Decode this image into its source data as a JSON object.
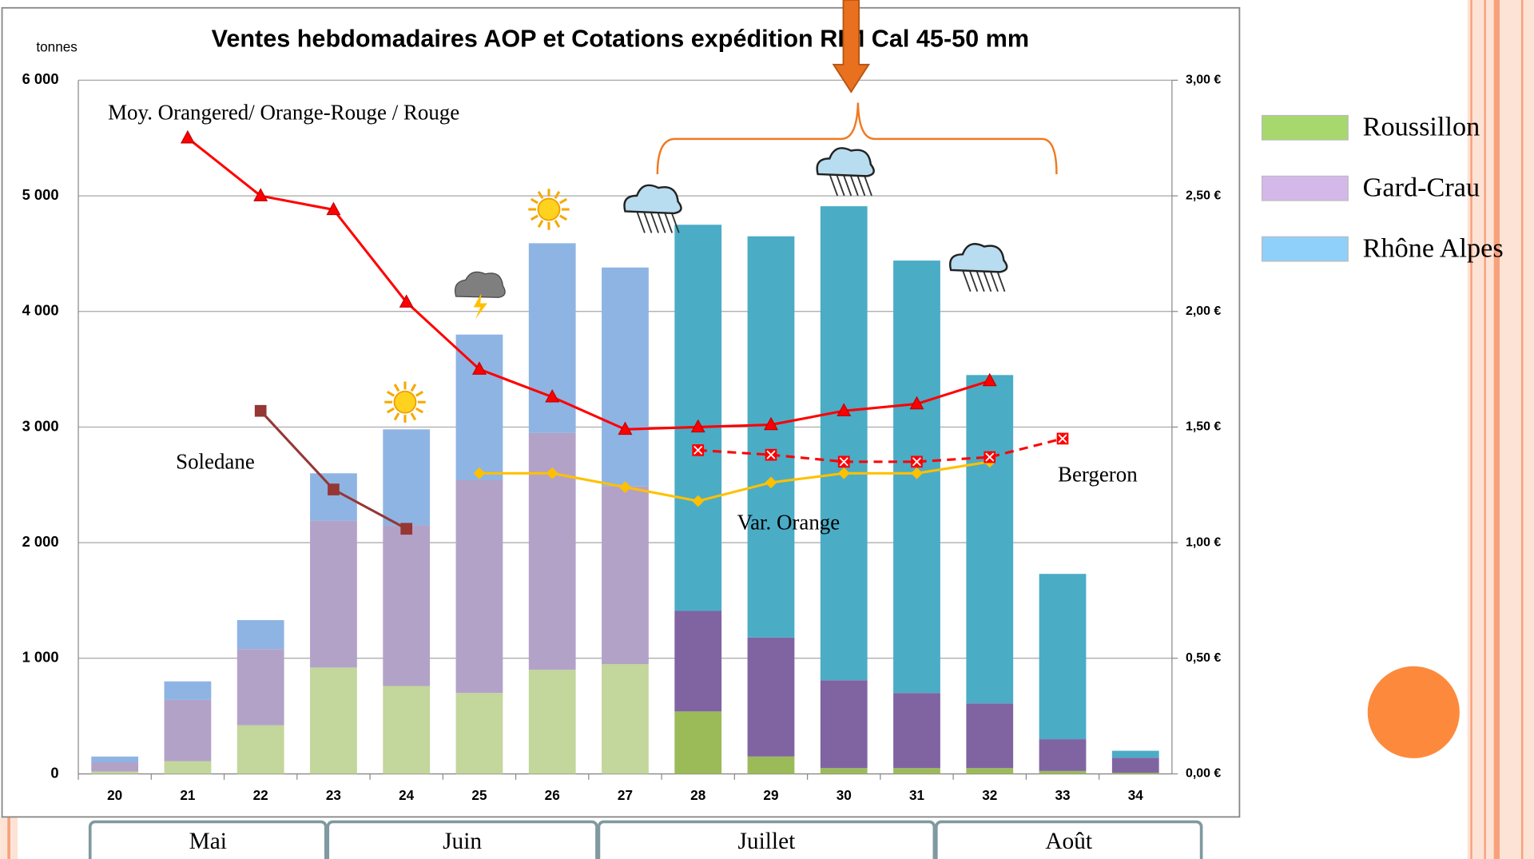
{
  "chart_data": {
    "type": "bar",
    "stacked": true,
    "title": "Ventes hebdomadaires AOP et Cotations expédition RIM Cal 45-50 mm",
    "y_label": "tonnes",
    "categories": [
      "20",
      "21",
      "22",
      "23",
      "24",
      "25",
      "26",
      "27",
      "28",
      "29",
      "30",
      "31",
      "32",
      "33",
      "34"
    ],
    "months": [
      "Mai",
      "Juin",
      "Juillet",
      "Août"
    ],
    "ylim": [
      0,
      6000
    ],
    "yticks": [
      0,
      {
        "value": 1000,
        "label": "1 000"
      },
      {
        "value": 2000,
        "label": "2 000"
      },
      {
        "value": 3000,
        "label": "3 000"
      },
      {
        "value": 4000,
        "label": "4 000"
      },
      {
        "value": 5000,
        "label": "5 000"
      },
      {
        "value": 6000,
        "label": "6 000"
      }
    ],
    "y2lim": [
      0,
      3
    ],
    "y2ticks": [
      {
        "value": 0,
        "label": "0,00 €"
      },
      {
        "value": 0.5,
        "label": "0,50 €"
      },
      {
        "value": 1,
        "label": "1,00 €"
      },
      {
        "value": 1.5,
        "label": "1,50 €"
      },
      {
        "value": 2,
        "label": "2,00 €"
      },
      {
        "value": 2.5,
        "label": "2,50 €"
      },
      {
        "value": 3,
        "label": "3,00 €"
      }
    ],
    "grid": true,
    "legend": "right",
    "series": [
      {
        "name": "Roussillon",
        "color": "#a6d86e",
        "colors": [
          "#c3d69b",
          "#c3d69b",
          "#c3d69b",
          "#c3d69b",
          "#c3d69b",
          "#c3d69b",
          "#c3d69b",
          "#c3d69b",
          "#9bbb59",
          "#9bbb59",
          "#9bbb59",
          "#9bbb59",
          "#9bbb59",
          "#9bbb59",
          "#9bbb59"
        ],
        "values": [
          20,
          110,
          420,
          920,
          760,
          700,
          900,
          950,
          540,
          150,
          50,
          50,
          50,
          25,
          10
        ]
      },
      {
        "name": "Gard-Crau",
        "color": "#d4b8ea",
        "colors": [
          "#b3a2c7",
          "#b3a2c7",
          "#b3a2c7",
          "#b3a2c7",
          "#b3a2c7",
          "#b3a2c7",
          "#b3a2c7",
          "#b3a2c7",
          "#8064a2",
          "#8064a2",
          "#8064a2",
          "#8064a2",
          "#8064a2",
          "#8064a2",
          "#8064a2"
        ],
        "values": [
          80,
          530,
          660,
          1270,
          1390,
          1840,
          2050,
          1540,
          870,
          1030,
          760,
          650,
          560,
          275,
          130
        ]
      },
      {
        "name": "Rhône Alpes",
        "color": "#8fd0fb",
        "colors": [
          "#8eb4e3",
          "#8eb4e3",
          "#8eb4e3",
          "#8eb4e3",
          "#8eb4e3",
          "#8eb4e3",
          "#8eb4e3",
          "#8eb4e3",
          "#4bacc6",
          "#4bacc6",
          "#4bacc6",
          "#4bacc6",
          "#4bacc6",
          "#4bacc6",
          "#4bacc6"
        ],
        "values": [
          50,
          160,
          250,
          410,
          830,
          1260,
          1640,
          1890,
          3340,
          3470,
          4100,
          3740,
          2840,
          1430,
          60
        ]
      },
      {
        "name": "Moy. Orangered/ Orange-Rouge / Rouge",
        "type": "line",
        "axis": "y2",
        "color": "#ff0000",
        "marker": "triangle",
        "values": [
          null,
          2.75,
          2.5,
          2.44,
          2.04,
          1.75,
          1.63,
          1.49,
          1.5,
          1.51,
          1.57,
          1.6,
          1.7,
          null,
          null
        ]
      },
      {
        "name": "Soledane",
        "type": "line",
        "axis": "y2",
        "color": "#953735",
        "marker": "square",
        "values": [
          null,
          null,
          1.57,
          1.23,
          1.06,
          null,
          null,
          null,
          null,
          null,
          null,
          null,
          null,
          null,
          null
        ]
      },
      {
        "name": "Var. Orange",
        "type": "line",
        "axis": "y2",
        "color": "#ffc000",
        "marker": "diamond",
        "values": [
          null,
          null,
          null,
          null,
          null,
          1.3,
          1.3,
          1.24,
          1.18,
          1.26,
          1.3,
          1.3,
          1.35,
          null,
          null
        ]
      },
      {
        "name": "Bergeron",
        "type": "line",
        "axis": "y2",
        "color": "#ff0000",
        "marker": "cross",
        "dash": true,
        "values": [
          null,
          null,
          null,
          null,
          null,
          null,
          null,
          null,
          1.4,
          1.38,
          1.35,
          1.35,
          1.37,
          1.45,
          null
        ]
      }
    ]
  }
}
